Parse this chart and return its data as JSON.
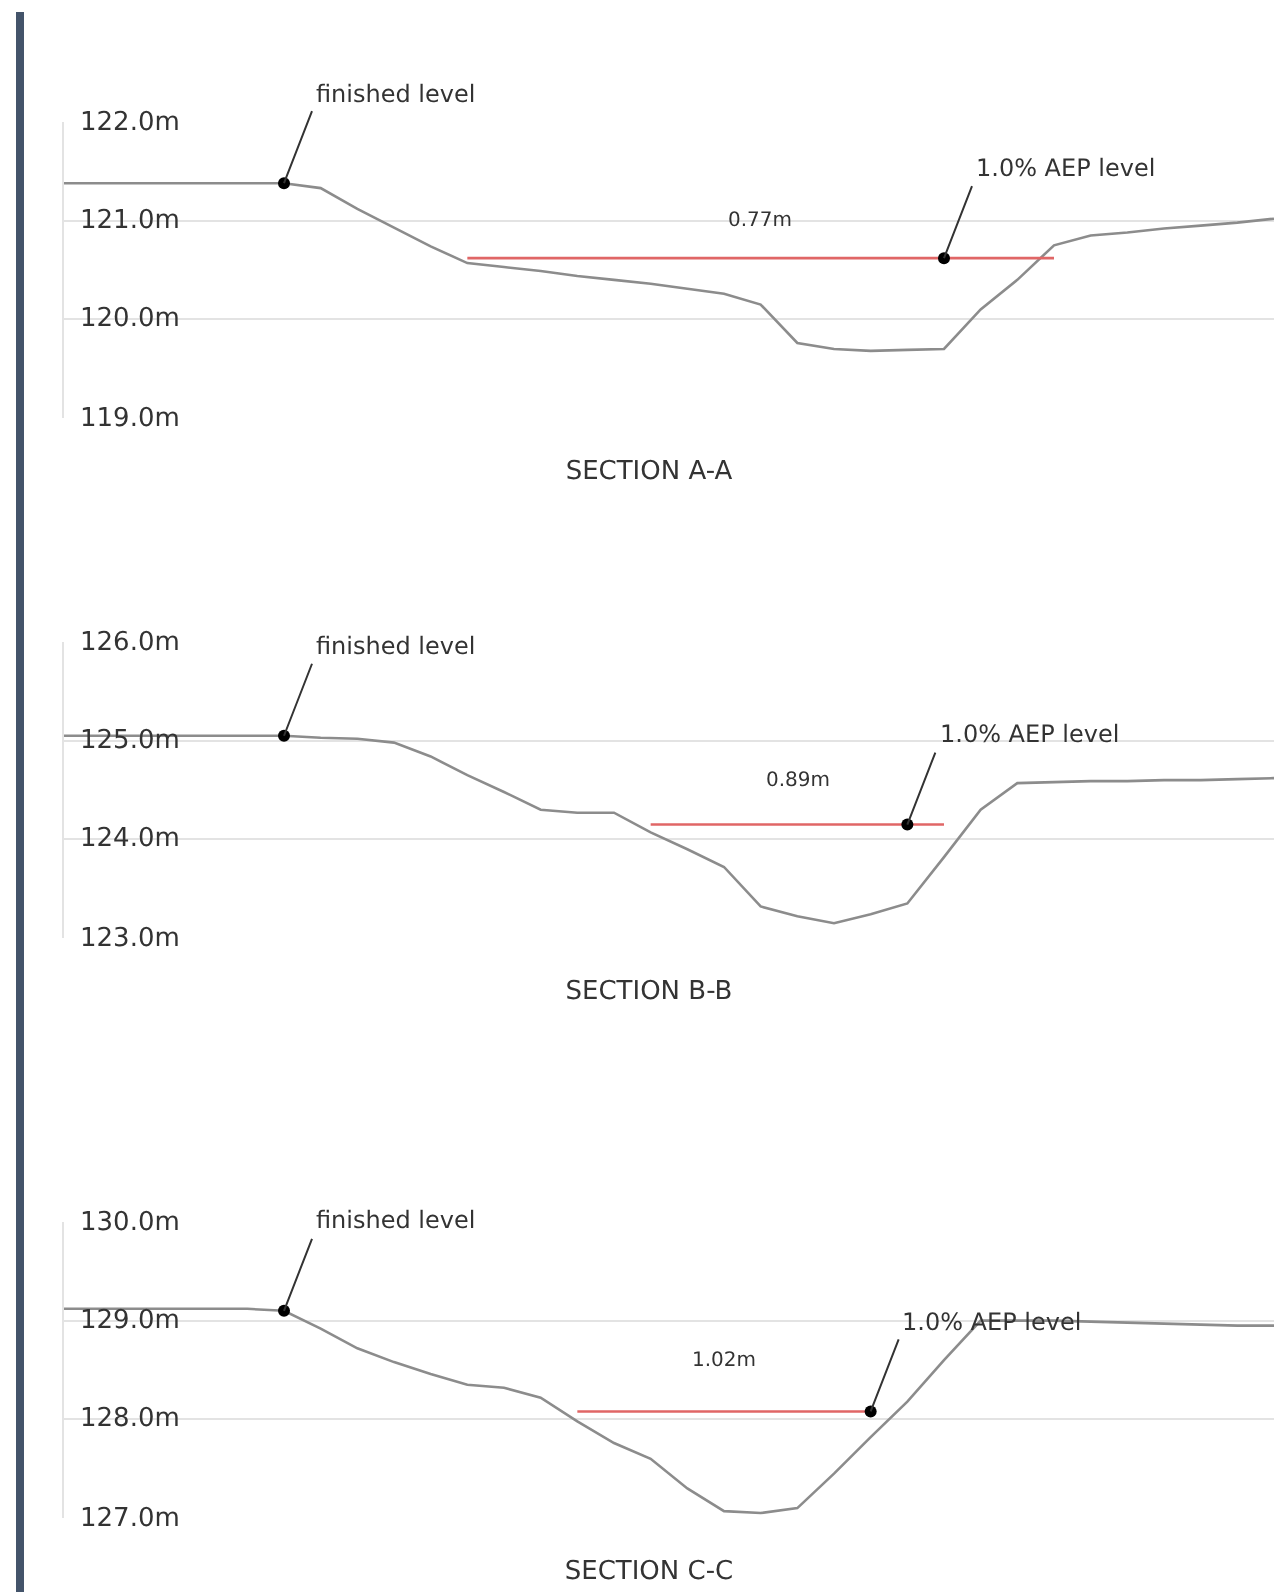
{
  "chart_data": [
    {
      "type": "line",
      "title": "SECTION A-A",
      "categories": [
        null,
        null,
        null,
        null,
        null,
        null,
        null,
        null,
        null,
        null,
        null,
        null,
        null,
        null,
        null,
        null,
        null,
        null,
        null,
        null,
        null,
        null,
        null,
        null,
        null,
        null,
        null,
        null,
        null,
        null,
        null,
        null,
        null,
        null
      ],
      "series": [
        {
          "color": "#8c8c8c",
          "values": [
            121.38,
            121.38,
            121.38,
            121.38,
            121.38,
            121.38,
            121.38,
            121.33,
            121.12,
            120.93,
            120.74,
            120.57,
            120.53,
            120.49,
            120.44,
            120.4,
            120.36,
            120.31,
            120.26,
            120.15,
            119.76,
            119.7,
            119.68,
            119.69,
            119.7,
            120.1,
            120.4,
            120.75,
            120.85,
            120.88,
            120.92,
            120.95,
            120.98,
            121.02
          ]
        },
        {
          "color": "#e06666",
          "values": [
            null,
            null,
            null,
            null,
            null,
            null,
            null,
            null,
            null,
            null,
            null,
            120.62,
            120.62,
            120.62,
            120.62,
            120.62,
            120.62,
            120.62,
            120.62,
            120.62,
            120.62,
            120.62,
            120.62,
            120.62,
            120.62,
            120.62,
            120.62,
            120.62,
            null,
            null,
            null,
            null,
            null,
            null
          ]
        },
        {
          "type": "scatter",
          "color": "#000000",
          "values": [
            null,
            null,
            null,
            null,
            null,
            null,
            121.38,
            null,
            null,
            null,
            null,
            null,
            null,
            null,
            null,
            null,
            null,
            null,
            null,
            null,
            null,
            null,
            null,
            null,
            120.62,
            null,
            null,
            null,
            null,
            null,
            null,
            null,
            null,
            null
          ]
        }
      ],
      "ylim": [
        119,
        122
      ],
      "yticks": [
        {
          "value": 119,
          "label": "119.0m"
        },
        {
          "value": 120,
          "label": "120.0m"
        },
        {
          "value": 121,
          "label": "121.0m"
        },
        {
          "value": 122,
          "label": "122.0m"
        }
      ],
      "annotations": [
        "finished level",
        "1.0% AEP level",
        "0.77m"
      ],
      "grid": "y",
      "tick_labels": "y"
    },
    {
      "type": "line",
      "title": "SECTION B-B",
      "categories": [
        null,
        null,
        null,
        null,
        null,
        null,
        null,
        null,
        null,
        null,
        null,
        null,
        null,
        null,
        null,
        null,
        null,
        null,
        null,
        null,
        null,
        null,
        null,
        null,
        null,
        null,
        null,
        null,
        null,
        null,
        null,
        null,
        null,
        null
      ],
      "series": [
        {
          "color": "#8c8c8c",
          "values": [
            125.05,
            125.05,
            125.05,
            125.05,
            125.05,
            125.05,
            125.05,
            125.03,
            125.02,
            124.98,
            124.84,
            124.65,
            124.48,
            124.3,
            124.27,
            124.27,
            124.07,
            123.9,
            123.72,
            123.32,
            123.22,
            123.15,
            123.24,
            123.35,
            123.82,
            124.3,
            124.57,
            124.58,
            124.59,
            124.59,
            124.6,
            124.6,
            124.61,
            124.62
          ]
        },
        {
          "color": "#e06666",
          "values": [
            null,
            null,
            null,
            null,
            null,
            null,
            null,
            null,
            null,
            null,
            null,
            null,
            null,
            null,
            null,
            null,
            124.15,
            124.15,
            124.15,
            124.15,
            124.15,
            124.15,
            124.15,
            124.15,
            124.15,
            null,
            null,
            null,
            null,
            null,
            null,
            null,
            null,
            null
          ]
        },
        {
          "type": "scatter",
          "color": "#000000",
          "values": [
            null,
            null,
            null,
            null,
            null,
            null,
            125.05,
            null,
            null,
            null,
            null,
            null,
            null,
            null,
            null,
            null,
            null,
            null,
            null,
            null,
            null,
            null,
            null,
            124.15,
            null,
            null,
            null,
            null,
            null,
            null,
            null,
            null,
            null,
            null
          ]
        }
      ],
      "ylim": [
        123,
        126
      ],
      "yticks": [
        {
          "value": 123,
          "label": "123.0m"
        },
        {
          "value": 124,
          "label": "124.0m"
        },
        {
          "value": 125,
          "label": "125.0m"
        },
        {
          "value": 126,
          "label": "126.0m"
        }
      ],
      "annotations": [
        "finished level",
        "1.0% AEP level",
        "0.89m"
      ],
      "grid": "y",
      "tick_labels": "y"
    },
    {
      "type": "line",
      "title": "SECTION C-C",
      "categories": [
        null,
        null,
        null,
        null,
        null,
        null,
        null,
        null,
        null,
        null,
        null,
        null,
        null,
        null,
        null,
        null,
        null,
        null,
        null,
        null,
        null,
        null,
        null,
        null,
        null,
        null,
        null,
        null,
        null,
        null,
        null,
        null,
        null,
        null
      ],
      "series": [
        {
          "color": "#8c8c8c",
          "values": [
            129.12,
            129.12,
            129.12,
            129.12,
            129.12,
            129.12,
            129.1,
            128.92,
            128.72,
            128.58,
            128.46,
            128.35,
            128.32,
            128.22,
            127.98,
            127.76,
            127.6,
            127.3,
            127.07,
            127.05,
            127.1,
            127.45,
            127.82,
            128.18,
            128.6,
            129.0,
            129.0,
            129.0,
            128.99,
            128.98,
            128.97,
            128.96,
            128.95,
            128.95
          ]
        },
        {
          "color": "#e06666",
          "values": [
            null,
            null,
            null,
            null,
            null,
            null,
            null,
            null,
            null,
            null,
            null,
            null,
            null,
            null,
            128.08,
            128.08,
            128.08,
            128.08,
            128.08,
            128.08,
            128.08,
            128.08,
            128.08,
            null,
            null,
            null,
            null,
            null,
            null,
            null,
            null,
            null,
            null,
            null
          ]
        },
        {
          "type": "scatter",
          "color": "#000000",
          "values": [
            null,
            null,
            null,
            null,
            null,
            null,
            129.1,
            null,
            null,
            null,
            null,
            null,
            null,
            null,
            null,
            null,
            null,
            null,
            null,
            null,
            null,
            null,
            128.08,
            null,
            null,
            null,
            null,
            null,
            null,
            null,
            null,
            null,
            null,
            null
          ]
        }
      ],
      "ylim": [
        127,
        130
      ],
      "yticks": [
        {
          "value": 127,
          "label": "127.0m"
        },
        {
          "value": 128,
          "label": "128.0m"
        },
        {
          "value": 129,
          "label": "129.0m"
        },
        {
          "value": 130,
          "label": "130.0m"
        }
      ],
      "annotations": [
        "finished level",
        "1.0% AEP level",
        "1.02m"
      ],
      "grid": "y",
      "tick_labels": "y"
    }
  ]
}
